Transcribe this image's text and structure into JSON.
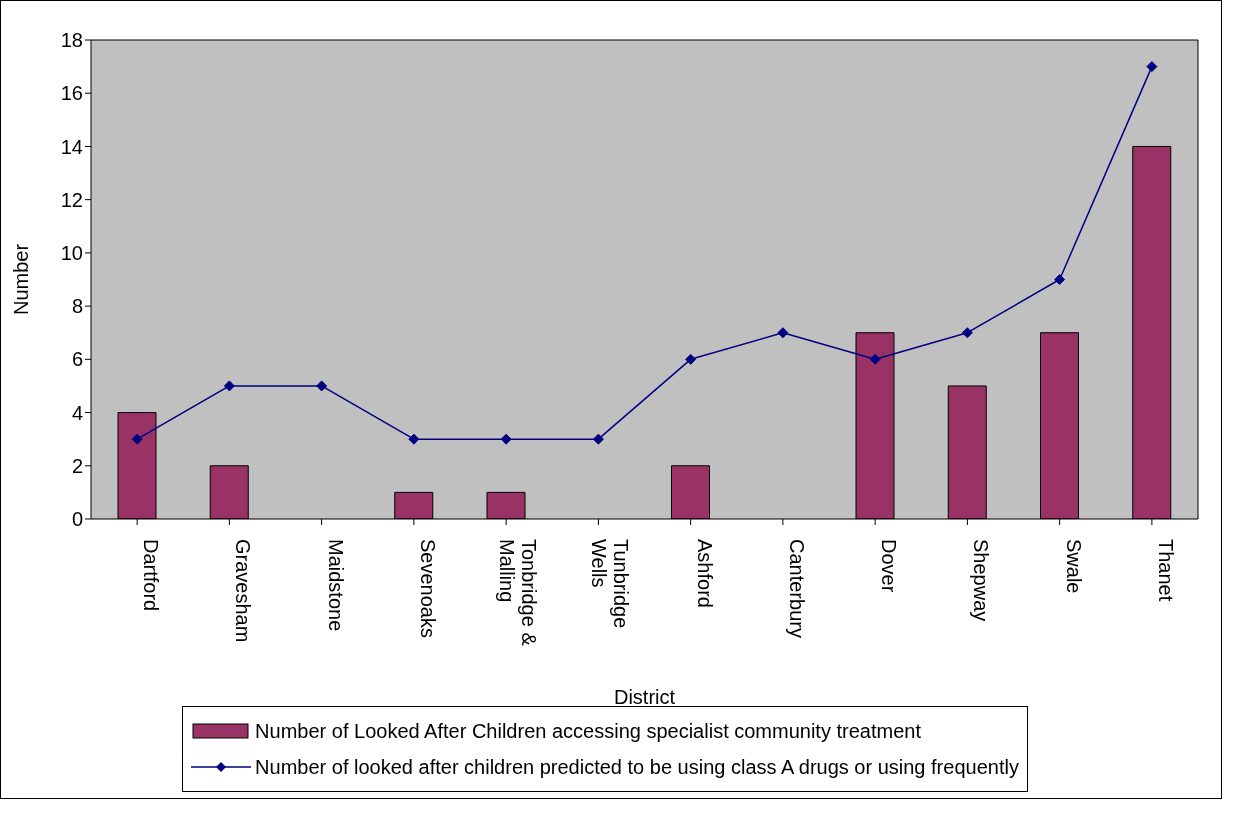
{
  "chart_data": {
    "type": "bar",
    "xlabel": "District",
    "ylabel": "Number",
    "categories": [
      "Dartford",
      "Gravesham",
      "Maidstone",
      "Sevenoaks",
      "Tonbridge & Malling",
      "Tunbridge Wells",
      "Ashford",
      "Canterbury",
      "Dover",
      "Shepway",
      "Swale",
      "Thanet"
    ],
    "series": [
      {
        "name": "Number of Looked After Children accessing specialist community treatment",
        "color": "#993366",
        "values": [
          4,
          2,
          null,
          1,
          1,
          null,
          2,
          null,
          7,
          5,
          7,
          14
        ]
      },
      {
        "name": "Number of looked after children predicted to be using class A drugs or using frequently",
        "type": "line",
        "color": "#000080",
        "marker": "diamond",
        "values": [
          3,
          5,
          5,
          3,
          3,
          3,
          6,
          7,
          6,
          7,
          9,
          17
        ]
      }
    ],
    "ylim": [
      0,
      18
    ],
    "yticks": [
      0,
      2,
      4,
      6,
      8,
      10,
      12,
      14,
      16,
      18
    ],
    "grid": false,
    "legend": "bottom"
  }
}
